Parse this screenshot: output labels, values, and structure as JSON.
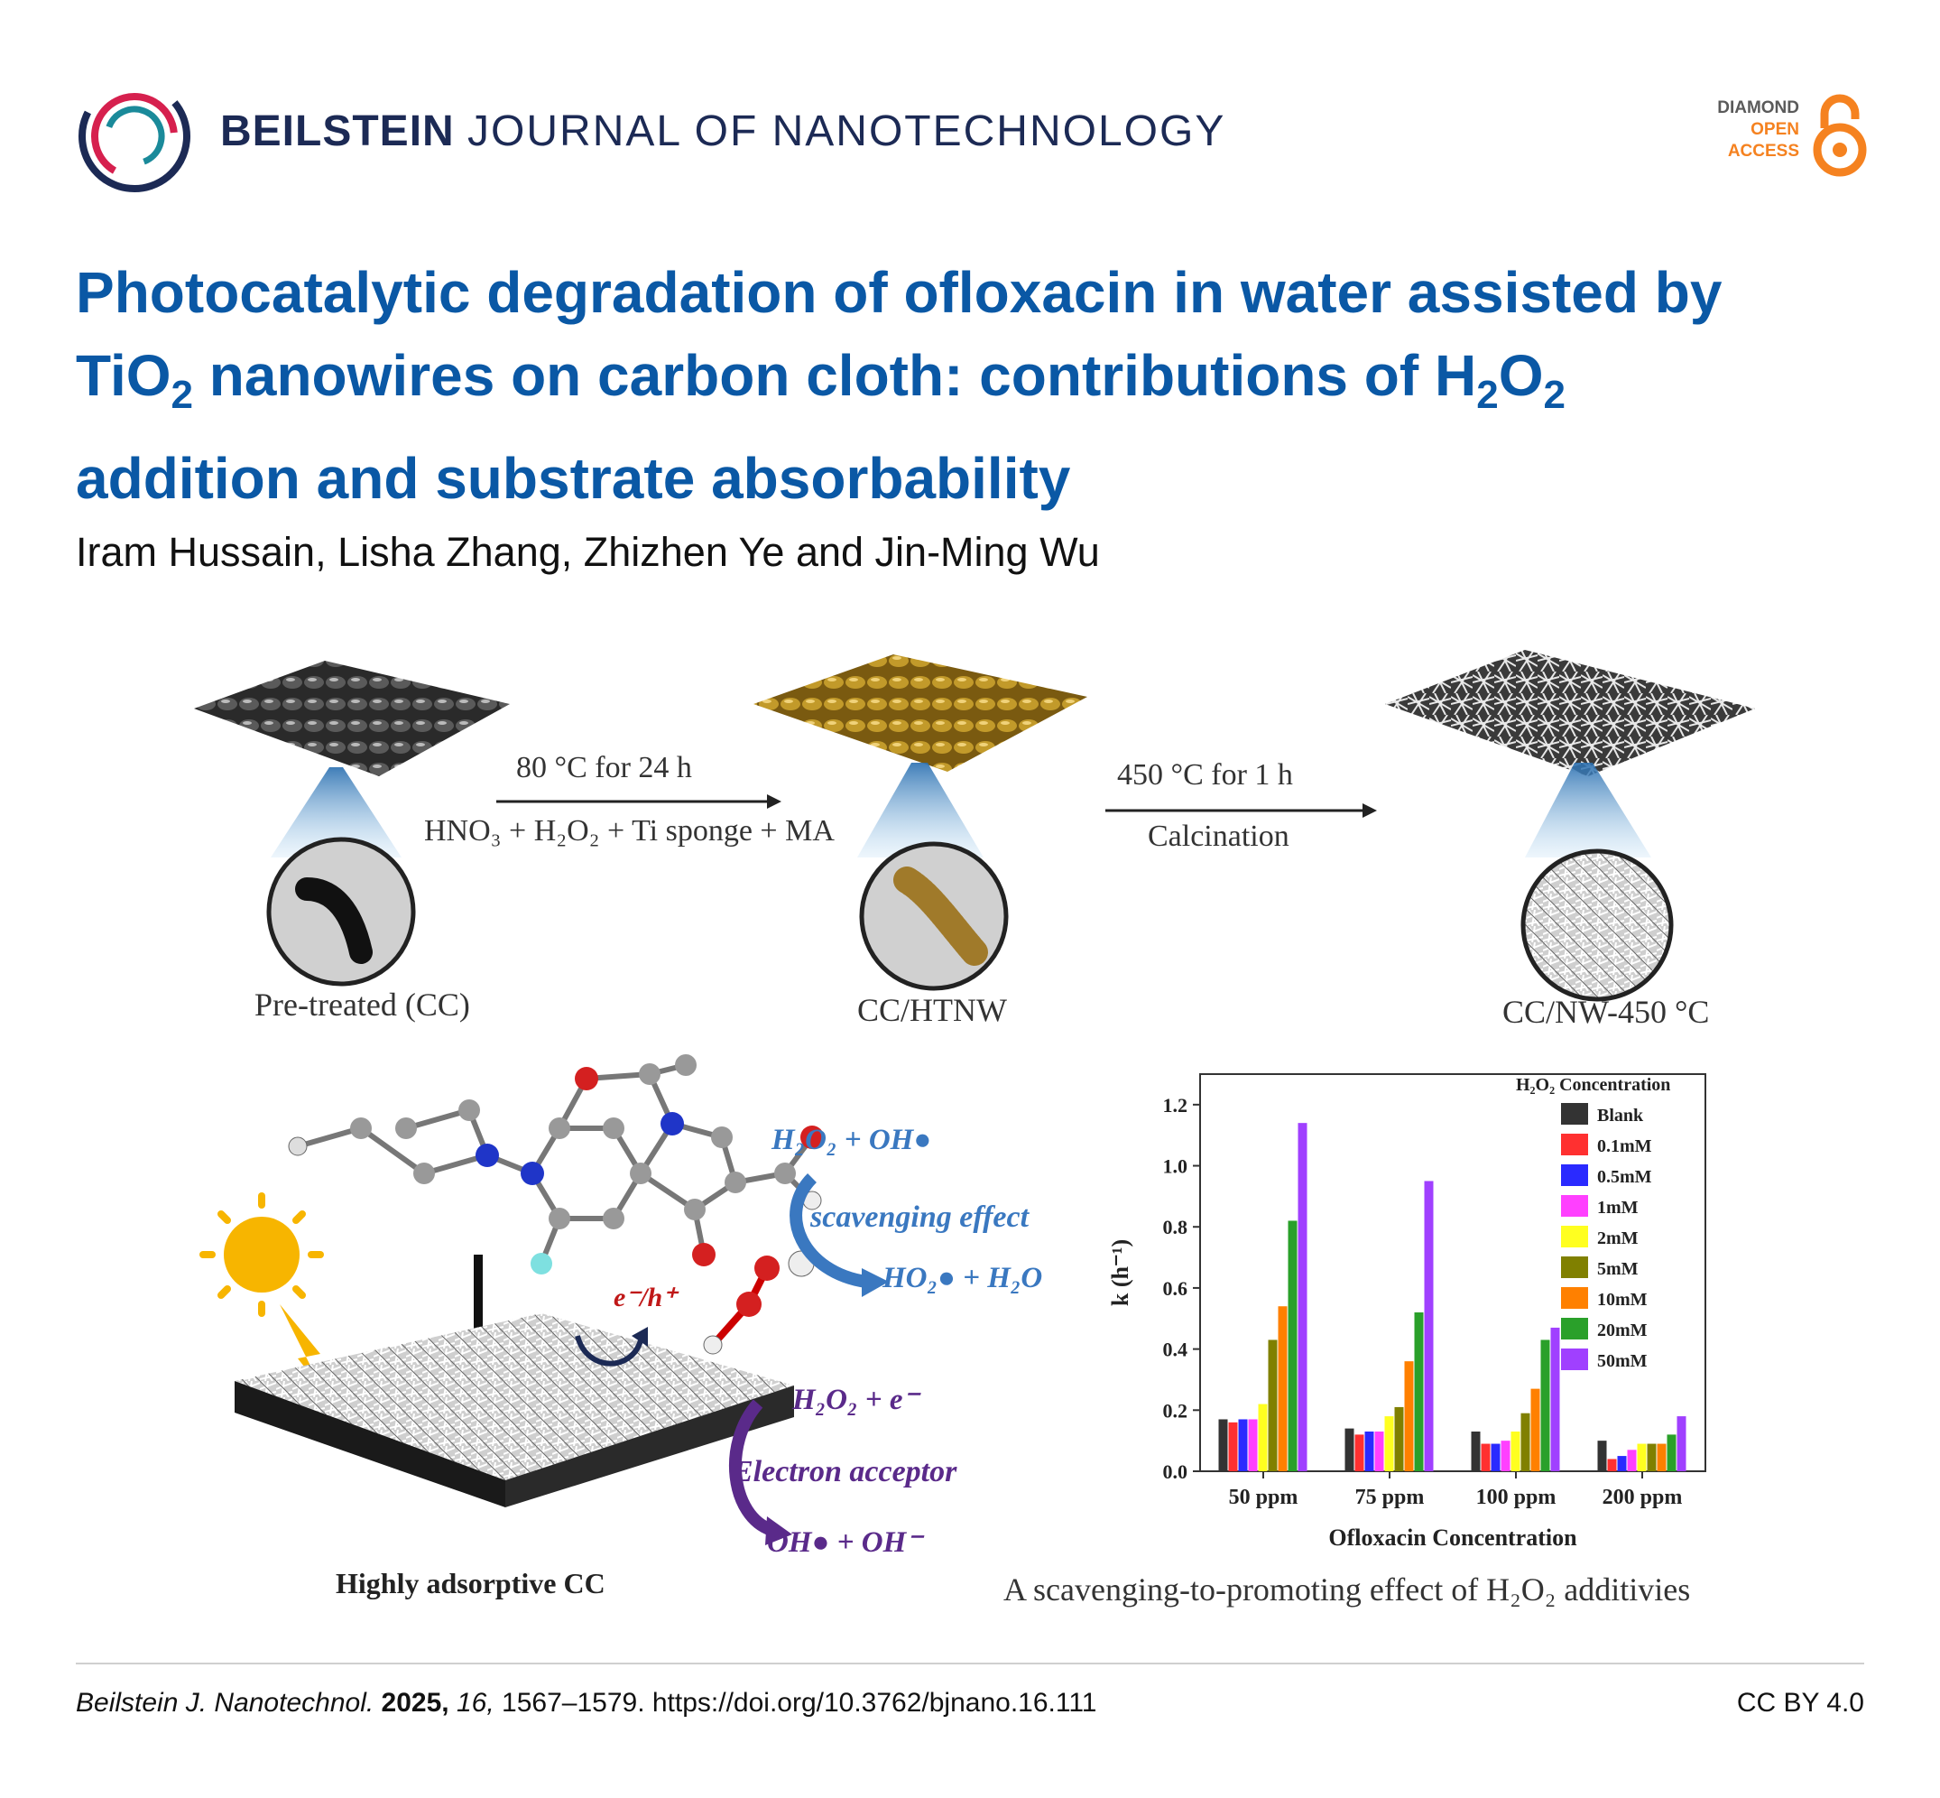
{
  "header": {
    "journal_bold": "BEILSTEIN",
    "journal_rest": "JOURNAL OF NANOTECHNOLOGY",
    "oa_line1": "DIAMOND",
    "oa_line2": "OPEN",
    "oa_line3": "ACCESS",
    "colors": {
      "journal": "#1c2a55",
      "open_access": "#f58220"
    }
  },
  "article": {
    "title_line1": "Photocatalytic degradation of ofloxacin in water assisted by",
    "title_line2_a": "TiO",
    "title_line2_sub1": "2",
    "title_line2_b": " nanowires on carbon cloth: contributions of H",
    "title_line2_sub2": "2",
    "title_line2_c": "O",
    "title_line2_sub3": "2",
    "title_line3": "addition and substrate absorbability",
    "authors": "Iram Hussain, Lisha Zhang, Zhizhen Ye and Jin-Ming Wu",
    "title_color": "#0a58a5"
  },
  "figure": {
    "step1_top": "80 °C for 24 h",
    "step1_bottom": "HNO₃ + H₂O₂ + Ti sponge + MA",
    "step2_top": "450 °C for 1 h",
    "step2_bottom": "Calcination",
    "stage1": "Pre-treated (CC)",
    "stage2": "CC/HTNW",
    "stage3": "CC/NW-450 °C",
    "react1": "H₂O₂ + OH●",
    "scavenging": "scavenging effect",
    "product1": "HO₂● + H₂O",
    "eh": "e⁻/h⁺",
    "react2": "H₂O₂ + e⁻",
    "acceptor": "Electron acceptor",
    "product2": "OH●  + OH⁻",
    "substrate_label": "Highly adsorptive CC",
    "caption": "A scavenging-to-promoting effect of H₂O₂ additivies"
  },
  "chart_data": {
    "type": "bar",
    "categories": [
      "50 ppm",
      "75 ppm",
      "100 ppm",
      "200 ppm"
    ],
    "xlabel": "Ofloxacin Concentration",
    "ylabel": "k (h⁻¹)",
    "ylim": [
      0,
      1.3
    ],
    "yticks": [
      "0.0",
      "0.2",
      "0.4",
      "0.6",
      "0.8",
      "1.0",
      "1.2"
    ],
    "legend_title": "H₂O₂ Concentration",
    "legend_position": "top-right",
    "series": [
      {
        "name": "Blank",
        "color": "#333333",
        "values": [
          0.17,
          0.14,
          0.13,
          0.1
        ]
      },
      {
        "name": "0.1mM",
        "color": "#ff3030",
        "values": [
          0.16,
          0.12,
          0.09,
          0.04
        ]
      },
      {
        "name": "0.5mM",
        "color": "#2a2aff",
        "values": [
          0.17,
          0.13,
          0.09,
          0.05
        ]
      },
      {
        "name": "1mM",
        "color": "#ff40ff",
        "values": [
          0.17,
          0.13,
          0.1,
          0.07
        ]
      },
      {
        "name": "2mM",
        "color": "#ffff20",
        "values": [
          0.22,
          0.18,
          0.13,
          0.09
        ]
      },
      {
        "name": "5mM",
        "color": "#808000",
        "values": [
          0.43,
          0.21,
          0.19,
          0.09
        ]
      },
      {
        "name": "10mM",
        "color": "#ff8000",
        "values": [
          0.54,
          0.36,
          0.27,
          0.09
        ]
      },
      {
        "name": "20mM",
        "color": "#2aa02a",
        "values": [
          0.82,
          0.52,
          0.43,
          0.12
        ]
      },
      {
        "name": "50mM",
        "color": "#a040ff",
        "values": [
          1.14,
          0.95,
          0.47,
          0.18
        ]
      }
    ]
  },
  "footer": {
    "journal_abbrev": "Beilstein J. Nanotechnol.",
    "year": "2025,",
    "volume": "16,",
    "pages": "1567–1579. https://doi.org/10.3762/bjnano.16.111",
    "license": "CC BY 4.0"
  }
}
